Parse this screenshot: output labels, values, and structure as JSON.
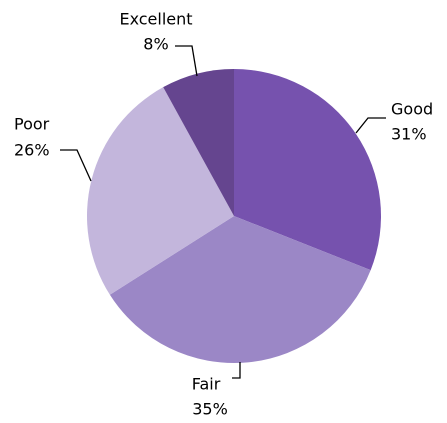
{
  "chart_data": {
    "type": "pie",
    "categories": [
      "Good",
      "Fair",
      "Poor",
      "Excellent"
    ],
    "values": [
      31,
      35,
      26,
      8
    ],
    "value_labels": [
      "31%",
      "35%",
      "26%",
      "8%"
    ],
    "colors": [
      "#7652ae",
      "#9b87c6",
      "#c3b6dc",
      "#65458f"
    ]
  }
}
